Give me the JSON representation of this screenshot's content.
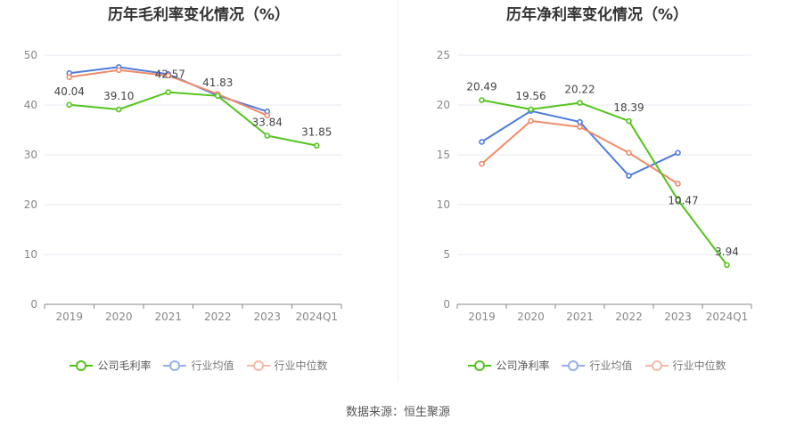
{
  "source": "数据来源：恒生聚源",
  "chart_data": [
    {
      "type": "line",
      "title": "历年毛利率变化情况（%）",
      "categories": [
        "2019",
        "2020",
        "2021",
        "2022",
        "2023",
        "2024Q1"
      ],
      "ylim": [
        0,
        50
      ],
      "yticks": [
        0,
        10,
        20,
        30,
        40,
        50
      ],
      "grid": true,
      "legend_position": "bottom",
      "series": [
        {
          "name": "公司毛利率",
          "color": "#52c41a",
          "values": [
            40.04,
            39.1,
            42.57,
            41.83,
            33.84,
            31.85
          ],
          "labels": [
            "40.04",
            "39.10",
            "42.57",
            "41.83",
            "33.84",
            "31.85"
          ]
        },
        {
          "name": "行业均值",
          "color": "#4e7be0",
          "values": [
            46.4,
            47.6,
            46.2,
            41.9,
            38.7,
            null
          ]
        },
        {
          "name": "行业中位数",
          "color": "#f08b6a",
          "values": [
            45.6,
            47.0,
            45.9,
            42.2,
            37.9,
            null
          ]
        }
      ]
    },
    {
      "type": "line",
      "title": "历年净利率变化情况（%）",
      "categories": [
        "2019",
        "2020",
        "2021",
        "2022",
        "2023",
        "2024Q1"
      ],
      "ylim": [
        0,
        25
      ],
      "yticks": [
        0,
        5,
        10,
        15,
        20,
        25
      ],
      "grid": true,
      "legend_position": "bottom",
      "series": [
        {
          "name": "公司净利率",
          "color": "#52c41a",
          "values": [
            20.49,
            19.56,
            20.22,
            18.39,
            10.47,
            3.94
          ],
          "labels": [
            "20.49",
            "19.56",
            "20.22",
            "18.39",
            "10.47",
            "3.94"
          ]
        },
        {
          "name": "行业均值",
          "color": "#4e7be0",
          "values": [
            16.3,
            19.4,
            18.3,
            12.9,
            15.2,
            null
          ]
        },
        {
          "name": "行业中位数",
          "color": "#f08b6a",
          "values": [
            14.1,
            18.4,
            17.8,
            15.2,
            12.1,
            null
          ]
        }
      ]
    }
  ]
}
